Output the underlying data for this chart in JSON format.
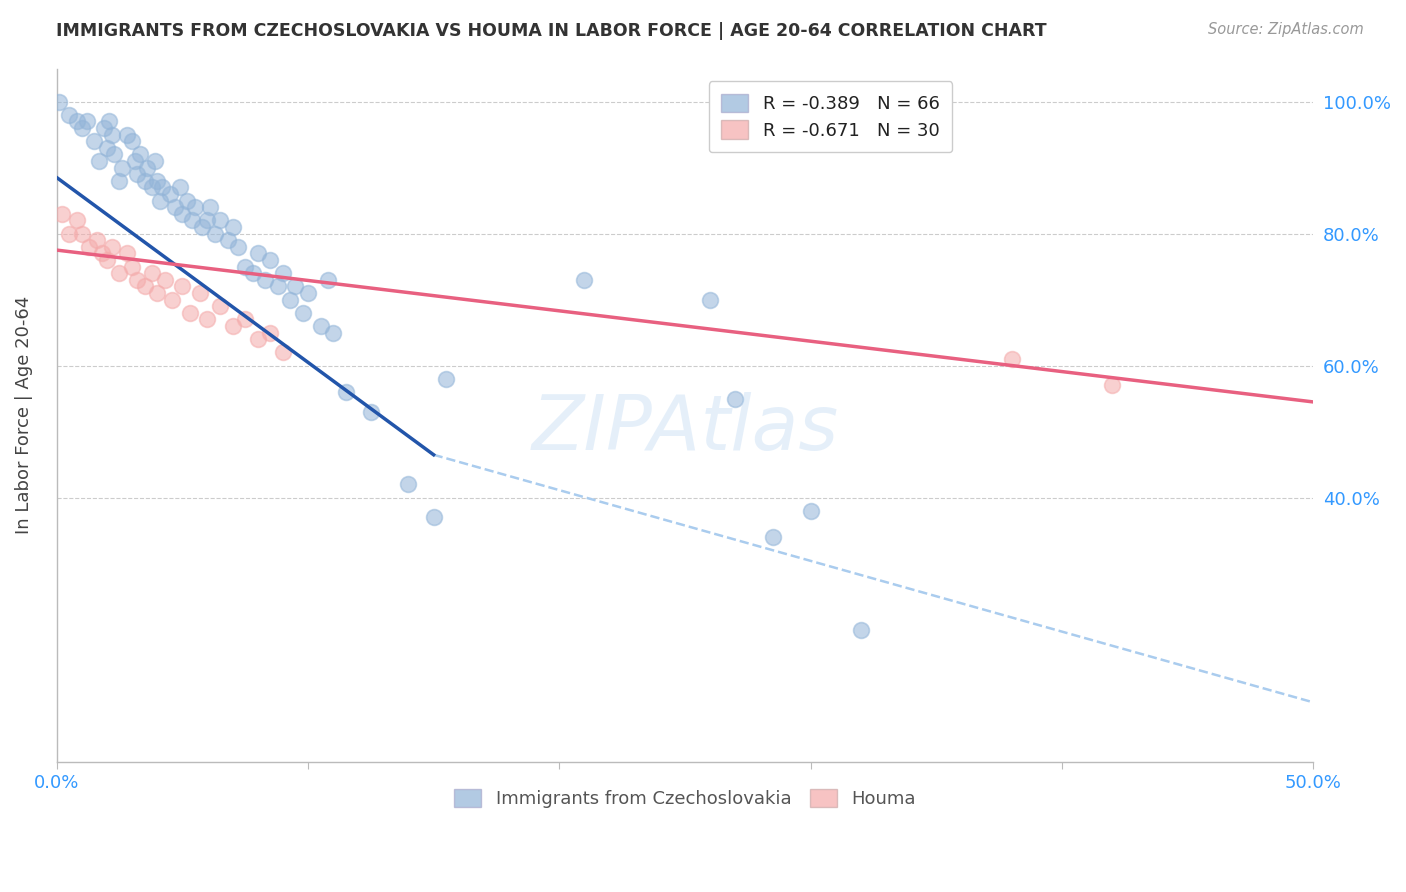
{
  "title": "IMMIGRANTS FROM CZECHOSLOVAKIA VS HOUMA IN LABOR FORCE | AGE 20-64 CORRELATION CHART",
  "source": "Source: ZipAtlas.com",
  "legend_blue_r": "R = -0.389",
  "legend_blue_n": "N = 66",
  "legend_pink_r": "R = -0.671",
  "legend_pink_n": "N = 30",
  "legend_label_blue": "Immigrants from Czechoslovakia",
  "legend_label_pink": "Houma",
  "blue_color": "#92B4D8",
  "pink_color": "#F4AAAA",
  "blue_line_color": "#2255AA",
  "pink_line_color": "#E86080",
  "dashed_line_color": "#AACCEE",
  "background_color": "#FFFFFF",
  "blue_scatter": {
    "x": [
      0.1,
      0.5,
      0.8,
      1.0,
      1.2,
      1.5,
      1.7,
      1.9,
      2.0,
      2.1,
      2.2,
      2.3,
      2.5,
      2.6,
      2.8,
      3.0,
      3.1,
      3.2,
      3.3,
      3.5,
      3.6,
      3.8,
      3.9,
      4.0,
      4.1,
      4.2,
      4.5,
      4.7,
      4.9,
      5.0,
      5.2,
      5.4,
      5.5,
      5.8,
      6.0,
      6.1,
      6.3,
      6.5,
      6.8,
      7.0,
      7.2,
      7.5,
      7.8,
      8.0,
      8.3,
      8.5,
      8.8,
      9.0,
      9.3,
      9.5,
      9.8,
      10.0,
      10.5,
      10.8,
      11.0,
      11.5,
      12.5,
      14.0,
      15.0,
      15.5,
      21.0,
      26.0,
      27.0,
      28.5,
      30.0,
      32.0
    ],
    "y": [
      1.0,
      0.98,
      0.97,
      0.96,
      0.97,
      0.94,
      0.91,
      0.96,
      0.93,
      0.97,
      0.95,
      0.92,
      0.88,
      0.9,
      0.95,
      0.94,
      0.91,
      0.89,
      0.92,
      0.88,
      0.9,
      0.87,
      0.91,
      0.88,
      0.85,
      0.87,
      0.86,
      0.84,
      0.87,
      0.83,
      0.85,
      0.82,
      0.84,
      0.81,
      0.82,
      0.84,
      0.8,
      0.82,
      0.79,
      0.81,
      0.78,
      0.75,
      0.74,
      0.77,
      0.73,
      0.76,
      0.72,
      0.74,
      0.7,
      0.72,
      0.68,
      0.71,
      0.66,
      0.73,
      0.65,
      0.56,
      0.53,
      0.42,
      0.37,
      0.58,
      0.73,
      0.7,
      0.55,
      0.34,
      0.38,
      0.2
    ]
  },
  "pink_scatter": {
    "x": [
      0.2,
      0.5,
      0.8,
      1.0,
      1.3,
      1.6,
      1.8,
      2.0,
      2.2,
      2.5,
      2.8,
      3.0,
      3.2,
      3.5,
      3.8,
      4.0,
      4.3,
      4.6,
      5.0,
      5.3,
      5.7,
      6.0,
      6.5,
      7.0,
      7.5,
      8.0,
      8.5,
      9.0,
      38.0,
      42.0
    ],
    "y": [
      0.83,
      0.8,
      0.82,
      0.8,
      0.78,
      0.79,
      0.77,
      0.76,
      0.78,
      0.74,
      0.77,
      0.75,
      0.73,
      0.72,
      0.74,
      0.71,
      0.73,
      0.7,
      0.72,
      0.68,
      0.71,
      0.67,
      0.69,
      0.66,
      0.67,
      0.64,
      0.65,
      0.62,
      0.61,
      0.57
    ]
  },
  "blue_trendline": {
    "x_start": 0.0,
    "x_end": 15.0,
    "y_start": 0.885,
    "y_end": 0.465
  },
  "pink_trendline": {
    "x_start": 0.0,
    "x_end": 50.0,
    "y_start": 0.775,
    "y_end": 0.545
  },
  "dashed_trendline": {
    "x_start": 15.0,
    "x_end": 50.0,
    "y_start": 0.465,
    "y_end": 0.09
  },
  "xlim": [
    0.0,
    50.0
  ],
  "ylim": [
    0.0,
    1.05
  ],
  "xticks": [
    0.0,
    10.0,
    20.0,
    30.0,
    40.0,
    50.0
  ],
  "xtick_labels": [
    "0.0%",
    "",
    "",
    "",
    "",
    "50.0%"
  ],
  "yticks": [
    1.0,
    0.8,
    0.6,
    0.4
  ],
  "ytick_labels": [
    "100.0%",
    "80.0%",
    "60.0%",
    "40.0%"
  ]
}
